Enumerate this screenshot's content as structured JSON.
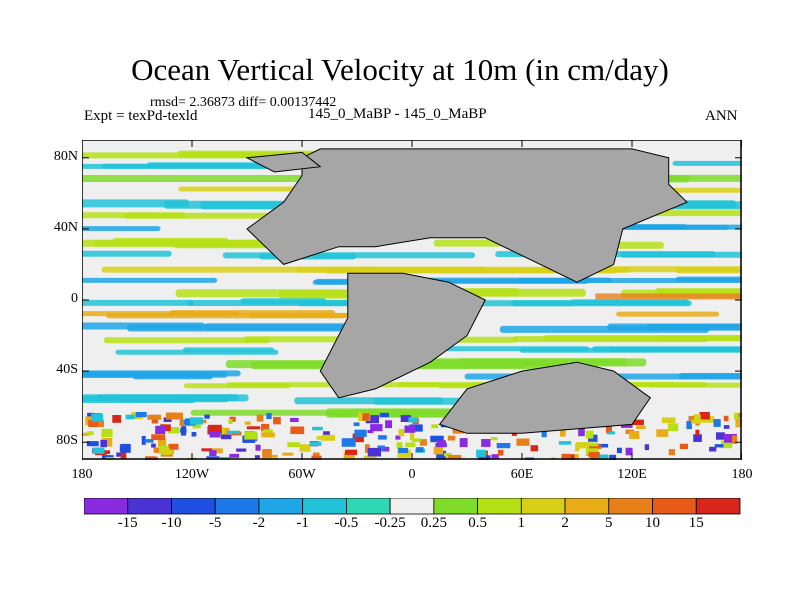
{
  "title": "Ocean Vertical Velocity at 10m (in cm/day)",
  "stats": "rmsd= 2.36873 diff= 0.00137442",
  "experiment": "Expt = texPd-texld",
  "center_label": "145_0_MaBP - 145_0_MaBP",
  "season": "ANN",
  "lat_ticks": [
    {
      "label": "80N",
      "lat": 80
    },
    {
      "label": "40N",
      "lat": 40
    },
    {
      "label": "0",
      "lat": 0
    },
    {
      "label": "40S",
      "lat": -40
    },
    {
      "label": "80S",
      "lat": -80
    }
  ],
  "lon_ticks": [
    {
      "label": "180",
      "lon": -180
    },
    {
      "label": "120W",
      "lon": -120
    },
    {
      "label": "60W",
      "lon": -60
    },
    {
      "label": "0",
      "lon": 0
    },
    {
      "label": "60E",
      "lon": 60
    },
    {
      "label": "120E",
      "lon": 120
    },
    {
      "label": "180",
      "lon": 180
    }
  ],
  "colorbar": {
    "labels": [
      "-15",
      "-10",
      "-5",
      "-2",
      "-1",
      "-0.5",
      "-0.25",
      "0.25",
      "0.5",
      "1",
      "2",
      "5",
      "10",
      "15"
    ],
    "colors": [
      "#8a2be2",
      "#4b32d4",
      "#1f4fe0",
      "#1e78e6",
      "#1ea6e6",
      "#22c3d8",
      "#2fd8b4",
      "#efefef",
      "#7fdc2a",
      "#b6e016",
      "#d8d018",
      "#e8ac16",
      "#e8801a",
      "#e85a18",
      "#d8261a"
    ]
  },
  "land_color": "#a6a6a6"
}
